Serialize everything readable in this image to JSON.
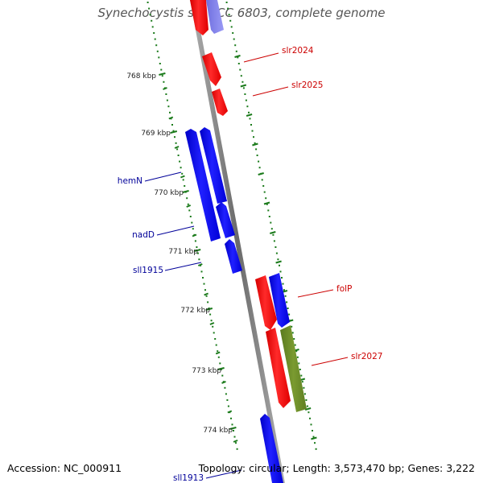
{
  "title": "Synechocystis sp. PCC 6803, complete genome",
  "footer": {
    "accession": "Accession: NC_000911",
    "summary": "Topology: circular; Length: 3,573,470 bp; Genes: 3,222"
  },
  "ticks": [
    "768 kbp",
    "769 kbp",
    "770 kbp",
    "771 kbp",
    "772 kbp",
    "773 kbp",
    "774 kbp"
  ],
  "gene_labels": {
    "right": [
      "slr2024",
      "slr2025",
      "folP",
      "slr2027"
    ],
    "left": [
      "hemN",
      "nadD",
      "sll1915",
      "sll1913"
    ]
  },
  "colors": {
    "forward_gene": "#ff0000",
    "reverse_gene": "#0000ff",
    "rna_gene": "#6b8e23",
    "backbone": "#888888",
    "ticks": "#1a7a1a",
    "label_red": "#cc0000",
    "label_blue": "#000099"
  }
}
